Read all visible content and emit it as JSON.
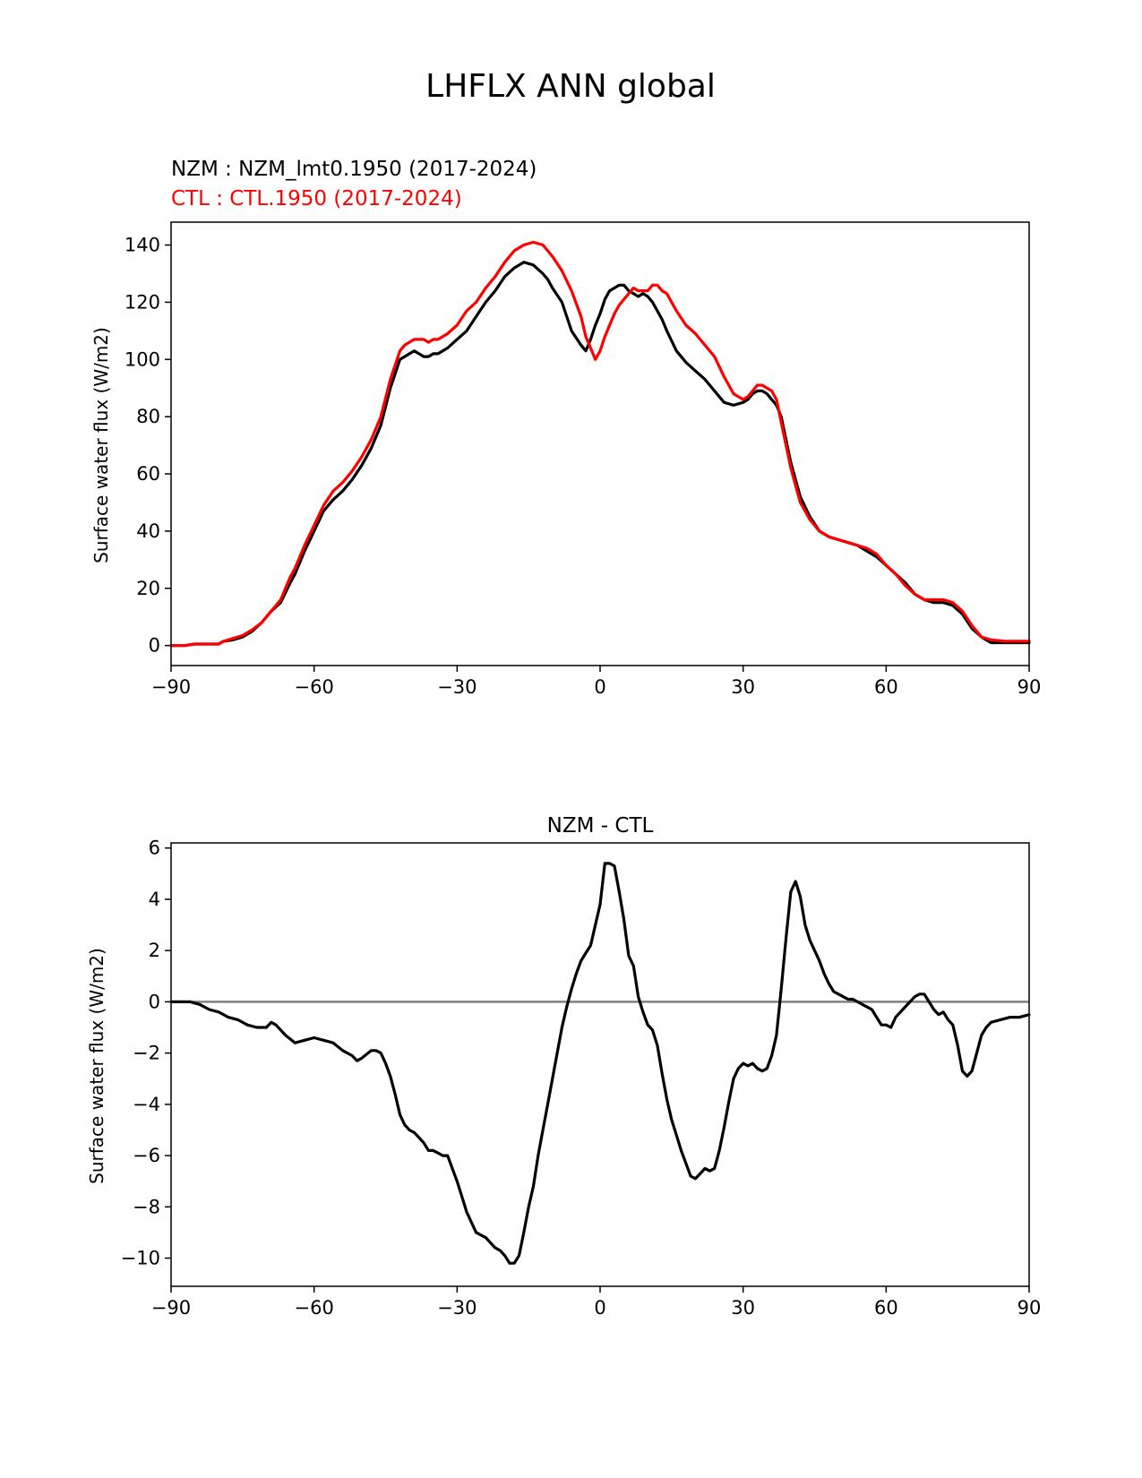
{
  "figure_title": "LHFLX ANN global",
  "chart_data": [
    {
      "type": "line",
      "legend": {
        "nzm_label": "NZM  : NZM_lmt0.1950 (2017-2024)",
        "ctl_label": "CTL : CTL.1950 (2017-2024)"
      },
      "title": "",
      "xlabel": "",
      "ylabel": "Surface water flux (W/m2)",
      "xlim": [
        -90,
        90
      ],
      "ylim": [
        -7,
        148
      ],
      "xticks": [
        -90,
        -60,
        -30,
        0,
        30,
        60,
        90
      ],
      "xtick_labels": [
        "−90",
        "−60",
        "−30",
        "0",
        "30",
        "60",
        "90"
      ],
      "yticks": [
        0,
        20,
        40,
        60,
        80,
        100,
        120,
        140
      ],
      "ytick_labels": [
        "0",
        "20",
        "40",
        "60",
        "80",
        "100",
        "120",
        "140"
      ],
      "series": [
        {
          "name": "NZM",
          "color": "#000000",
          "x": [
            -90,
            -87,
            -85,
            -82,
            -80,
            -79,
            -77,
            -75,
            -73,
            -71,
            -69,
            -67,
            -65,
            -64,
            -62,
            -60,
            -58,
            -56,
            -54,
            -52,
            -50,
            -48,
            -46,
            -44,
            -42,
            -41,
            -40,
            -39,
            -38,
            -37,
            -36,
            -35,
            -34,
            -32,
            -30,
            -28,
            -26,
            -24,
            -22,
            -20,
            -18,
            -16,
            -14,
            -12,
            -11,
            -10,
            -8,
            -6,
            -4,
            -3,
            -2,
            -1,
            0,
            1,
            2,
            3,
            4,
            5,
            6,
            7,
            8,
            9,
            10,
            11,
            12,
            13,
            14,
            16,
            18,
            20,
            22,
            24,
            26,
            28,
            30,
            31,
            32,
            33,
            34,
            35,
            36,
            37,
            38,
            40,
            42,
            44,
            46,
            48,
            50,
            52,
            54,
            56,
            58,
            60,
            62,
            64,
            66,
            68,
            70,
            72,
            74,
            76,
            78,
            80,
            82,
            85,
            88,
            90
          ],
          "values": [
            0,
            0,
            0.5,
            0.5,
            0.5,
            1.5,
            2,
            3,
            5,
            8,
            12,
            15,
            22,
            25,
            33,
            40,
            47,
            51,
            54,
            58,
            63,
            69,
            77,
            90,
            100,
            101,
            102,
            103,
            102,
            101,
            101,
            102,
            102,
            104,
            107,
            110,
            115,
            120,
            124,
            129,
            132,
            134,
            133,
            130,
            128,
            125,
            120,
            110,
            105,
            103,
            107,
            112,
            116,
            121,
            124,
            125,
            126,
            126,
            124,
            123,
            122,
            123,
            122,
            120,
            117,
            114,
            110,
            103,
            99,
            96,
            93,
            89,
            85,
            84,
            85,
            86,
            88,
            89,
            89,
            88,
            86,
            84,
            80,
            64,
            52,
            45,
            40,
            38,
            37,
            36,
            35,
            33,
            31,
            28,
            25,
            22,
            18,
            16,
            15,
            15,
            14,
            11,
            6,
            3,
            1,
            1,
            1,
            1
          ]
        },
        {
          "name": "CTL",
          "color": "#ff0000",
          "x": [
            -90,
            -87,
            -85,
            -82,
            -80,
            -79,
            -77,
            -75,
            -73,
            -71,
            -69,
            -67,
            -65,
            -64,
            -62,
            -60,
            -58,
            -56,
            -54,
            -52,
            -50,
            -48,
            -46,
            -44,
            -42,
            -41,
            -40,
            -39,
            -38,
            -37,
            -36,
            -35,
            -34,
            -32,
            -30,
            -28,
            -26,
            -24,
            -22,
            -20,
            -18,
            -16,
            -14,
            -12,
            -11,
            -10,
            -8,
            -6,
            -4,
            -3,
            -2,
            -1,
            0,
            1,
            2,
            3,
            4,
            5,
            6,
            7,
            8,
            9,
            10,
            11,
            12,
            13,
            14,
            16,
            18,
            20,
            22,
            24,
            26,
            28,
            30,
            31,
            32,
            33,
            34,
            35,
            36,
            37,
            38,
            40,
            42,
            44,
            46,
            48,
            50,
            52,
            54,
            56,
            58,
            60,
            62,
            64,
            66,
            68,
            70,
            72,
            74,
            76,
            78,
            80,
            82,
            85,
            88,
            90
          ],
          "values": [
            0,
            0,
            0.5,
            0.5,
            0.5,
            1.5,
            2.5,
            3.5,
            5.5,
            8,
            12,
            16,
            24,
            27,
            35,
            42,
            49,
            54,
            57,
            61,
            66,
            72,
            80,
            93,
            103,
            105,
            106,
            107,
            107,
            107,
            106,
            107,
            107,
            109,
            112,
            117,
            120,
            125,
            129,
            134,
            138,
            140,
            141,
            140,
            138,
            136,
            131,
            124,
            115,
            108,
            104,
            100,
            103,
            108,
            112,
            116,
            119,
            121,
            123,
            125,
            124,
            124,
            124,
            126,
            126,
            124,
            123,
            117,
            112,
            109,
            105,
            101,
            94,
            88,
            86,
            87,
            89,
            91,
            91,
            90,
            89,
            86,
            78,
            62,
            50,
            44,
            40,
            38,
            37,
            36,
            35,
            34,
            32,
            28,
            25,
            21,
            18,
            16,
            16,
            16,
            15,
            12,
            7,
            3,
            2,
            1.5,
            1.5,
            1.5
          ]
        }
      ]
    },
    {
      "type": "line",
      "title": "NZM - CTL",
      "xlabel": "",
      "ylabel": "Surface water flux (W/m2)",
      "xlim": [
        -90,
        90
      ],
      "ylim": [
        -11.1,
        6.2
      ],
      "xticks": [
        -90,
        -60,
        -30,
        0,
        30,
        60,
        90
      ],
      "xtick_labels": [
        "−90",
        "−60",
        "−30",
        "0",
        "30",
        "60",
        "90"
      ],
      "yticks": [
        -10,
        -8,
        -6,
        -4,
        -2,
        0,
        2,
        4,
        6
      ],
      "ytick_labels": [
        "−10",
        "−8",
        "−6",
        "−4",
        "−2",
        "0",
        "2",
        "4",
        "6"
      ],
      "zero_line_color": "#808080",
      "series": [
        {
          "name": "NZM - CTL",
          "color": "#000000",
          "x": [
            -90,
            -88,
            -86,
            -84,
            -82,
            -80,
            -78,
            -76,
            -74,
            -72,
            -70,
            -69,
            -68,
            -66,
            -64,
            -62,
            -60,
            -58,
            -56,
            -54,
            -52,
            -51,
            -50,
            -48,
            -47,
            -46,
            -45,
            -44,
            -43,
            -42,
            -41,
            -40,
            -39,
            -38,
            -37,
            -36,
            -35,
            -34,
            -33,
            -32,
            -31,
            -30,
            -29,
            -28,
            -27,
            -26,
            -25,
            -24,
            -23,
            -22,
            -21,
            -20,
            -19,
            -18,
            -17,
            -16,
            -15,
            -14,
            -13,
            -12,
            -11,
            -10,
            -9,
            -8,
            -7,
            -6,
            -5,
            -4,
            -3,
            -2,
            -1,
            0,
            1,
            2,
            3,
            4,
            5,
            6,
            7,
            8,
            9,
            10,
            11,
            12,
            13,
            14,
            15,
            16,
            17,
            18,
            19,
            20,
            21,
            22,
            23,
            24,
            25,
            26,
            27,
            28,
            29,
            30,
            31,
            32,
            33,
            34,
            35,
            36,
            37,
            38,
            39,
            40,
            41,
            42,
            43,
            44,
            45,
            46,
            47,
            48,
            49,
            50,
            51,
            52,
            53,
            54,
            55,
            56,
            57,
            58,
            59,
            60,
            61,
            62,
            63,
            64,
            65,
            66,
            67,
            68,
            69,
            70,
            71,
            72,
            73,
            74,
            75,
            76,
            77,
            78,
            79,
            80,
            81,
            82,
            84,
            86,
            88,
            90
          ],
          "values": [
            0,
            0,
            0,
            -0.1,
            -0.3,
            -0.4,
            -0.6,
            -0.7,
            -0.9,
            -1.0,
            -1.0,
            -0.8,
            -0.9,
            -1.3,
            -1.6,
            -1.5,
            -1.4,
            -1.5,
            -1.6,
            -1.9,
            -2.1,
            -2.3,
            -2.2,
            -1.9,
            -1.9,
            -2.0,
            -2.4,
            -2.9,
            -3.6,
            -4.4,
            -4.8,
            -5.0,
            -5.1,
            -5.3,
            -5.5,
            -5.8,
            -5.8,
            -5.9,
            -6.0,
            -6.0,
            -6.5,
            -7.0,
            -7.6,
            -8.2,
            -8.6,
            -9.0,
            -9.1,
            -9.2,
            -9.4,
            -9.6,
            -9.7,
            -9.9,
            -10.2,
            -10.2,
            -9.9,
            -9.0,
            -8.0,
            -7.2,
            -6.0,
            -5.0,
            -4.0,
            -3.0,
            -2.0,
            -1.0,
            -0.2,
            0.5,
            1.1,
            1.6,
            1.9,
            2.2,
            3.0,
            3.8,
            5.4,
            5.4,
            5.3,
            4.3,
            3.2,
            1.8,
            1.4,
            0.2,
            -0.4,
            -0.9,
            -1.1,
            -1.7,
            -2.8,
            -3.8,
            -4.6,
            -5.2,
            -5.8,
            -6.3,
            -6.8,
            -6.9,
            -6.7,
            -6.5,
            -6.6,
            -6.5,
            -5.8,
            -4.9,
            -3.9,
            -3.0,
            -2.6,
            -2.4,
            -2.5,
            -2.4,
            -2.6,
            -2.7,
            -2.6,
            -2.1,
            -1.3,
            0.5,
            2.5,
            4.3,
            4.7,
            4.1,
            3.0,
            2.4,
            2.0,
            1.6,
            1.1,
            0.7,
            0.4,
            0.3,
            0.2,
            0.1,
            0.1,
            0,
            -0.1,
            -0.2,
            -0.3,
            -0.6,
            -0.9,
            -0.9,
            -1.0,
            -0.6,
            -0.4,
            -0.2,
            0,
            0.2,
            0.3,
            0.3,
            0,
            -0.3,
            -0.5,
            -0.4,
            -0.7,
            -0.9,
            -1.7,
            -2.7,
            -2.9,
            -2.7,
            -2.0,
            -1.3,
            -1.0,
            -0.8,
            -0.7,
            -0.6,
            -0.6,
            -0.5
          ]
        }
      ]
    }
  ]
}
